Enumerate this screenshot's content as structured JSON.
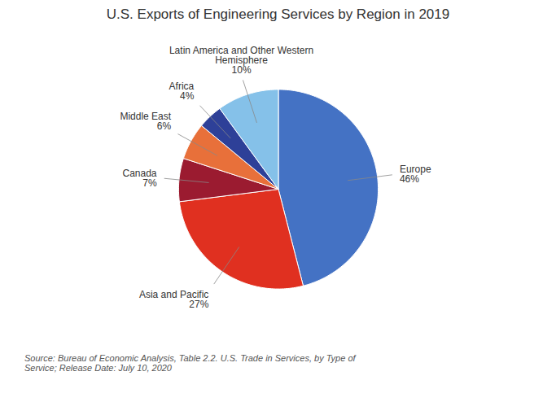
{
  "chart_data": {
    "type": "pie",
    "title": "U.S. Exports of Engineering Services by Region in 2019",
    "caption": "Source: Bureau of Economic Analysis, Table 2.2. U.S. Trade in Services, by Type of\nService; Release Date: July 10, 2020",
    "categories": [
      "Europe",
      "Asia and Pacific",
      "Canada",
      "Middle East",
      "Africa",
      "Latin America and Other Western\nHemisphere"
    ],
    "values": [
      46,
      27,
      7,
      6,
      4,
      10
    ],
    "value_labels": [
      "46%",
      "27%",
      "7%",
      "6%",
      "4%",
      "10%"
    ],
    "colors": [
      "#4472C4",
      "#E03020",
      "#9B1B30",
      "#E8703A",
      "#2E4098",
      "#85C1E9"
    ],
    "data_labels": true
  }
}
